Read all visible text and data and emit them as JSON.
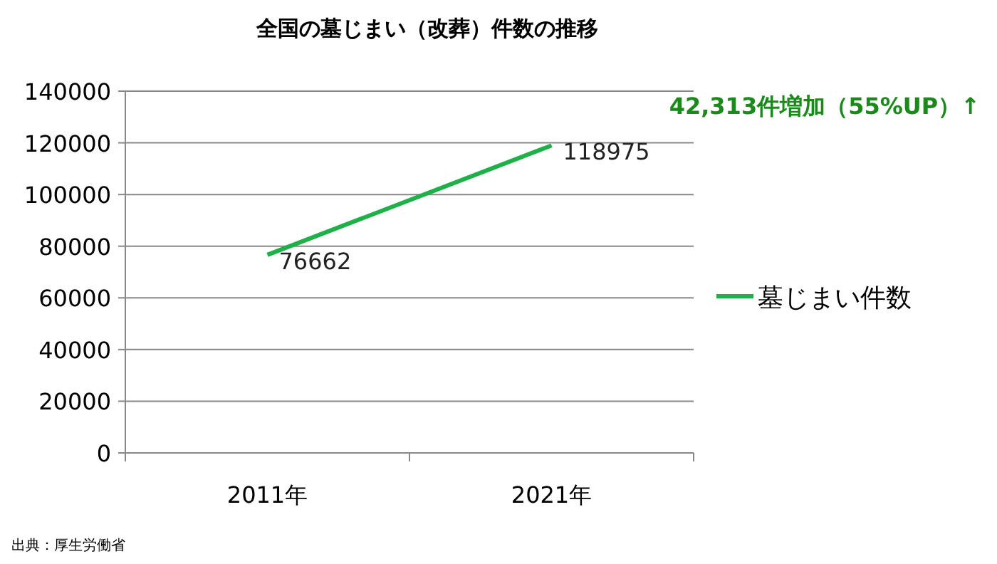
{
  "chart_data": {
    "type": "line",
    "title": "全国の墓じまい（改葬）件数の推移",
    "categories": [
      "2011年",
      "2021年"
    ],
    "series": [
      {
        "name": "墓じまい件数",
        "color": "#1fb04a",
        "values": [
          76662,
          118975
        ]
      }
    ],
    "ylim": [
      0,
      140000
    ],
    "yticks": [
      0,
      20000,
      40000,
      60000,
      80000,
      100000,
      120000,
      140000
    ],
    "grid": "y",
    "legend": "right",
    "data_labels": true,
    "marker": "none",
    "annotations": [
      "42,313件増加（55%UP）↑",
      "出典：厚生労働省"
    ]
  }
}
